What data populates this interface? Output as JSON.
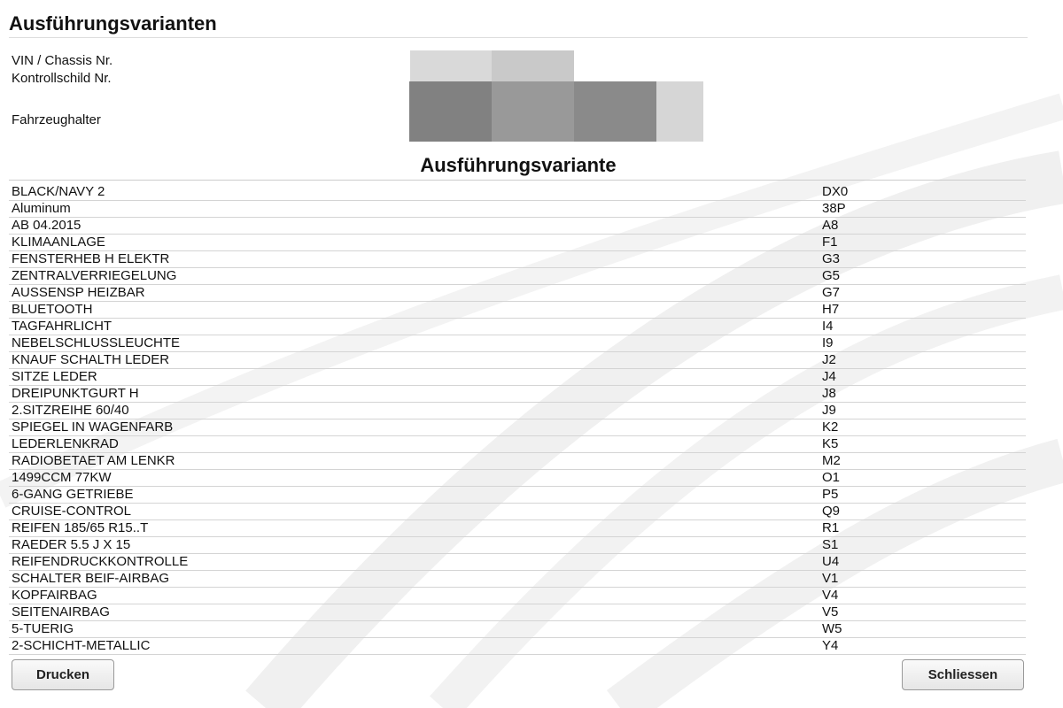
{
  "header": {
    "title": "Ausführungsvarianten"
  },
  "vehicle": {
    "labels": [
      "VIN / Chassis Nr.",
      "Kontrollschild Nr.",
      "Fahrzeughalter"
    ]
  },
  "table": {
    "title": "Ausführungsvariante",
    "rows": [
      [
        "BLACK/NAVY 2",
        "DX0"
      ],
      [
        "Aluminum",
        "38P"
      ],
      [
        "AB 04.2015",
        "A8"
      ],
      [
        "KLIMAANLAGE",
        "F1"
      ],
      [
        "FENSTERHEB H ELEKTR",
        "G3"
      ],
      [
        "ZENTRALVERRIEGELUNG",
        "G5"
      ],
      [
        "AUSSENSP HEIZBAR",
        "G7"
      ],
      [
        "BLUETOOTH",
        "H7"
      ],
      [
        "TAGFAHRLICHT",
        "I4"
      ],
      [
        "NEBELSCHLUSSLEUCHTE",
        "I9"
      ],
      [
        "KNAUF SCHALTH LEDER",
        "J2"
      ],
      [
        "SITZE LEDER",
        "J4"
      ],
      [
        "DREIPUNKTGURT H",
        "J8"
      ],
      [
        "2.SITZREIHE 60/40",
        "J9"
      ],
      [
        "SPIEGEL IN WAGENFARB",
        "K2"
      ],
      [
        "LEDERLENKRAD",
        "K5"
      ],
      [
        "RADIOBETAET AM LENKR",
        "M2"
      ],
      [
        "1499CCM 77KW",
        "O1"
      ],
      [
        "6-GANG GETRIEBE",
        "P5"
      ],
      [
        "CRUISE-CONTROL",
        "Q9"
      ],
      [
        "REIFEN 185/65 R15..T",
        "R1"
      ],
      [
        "RAEDER 5.5 J X 15",
        "S1"
      ],
      [
        "REIFENDRUCKKONTROLLE",
        "U4"
      ],
      [
        "SCHALTER BEIF-AIRBAG",
        "V1"
      ],
      [
        "KOPFAIRBAG",
        "V4"
      ],
      [
        "SEITENAIRBAG",
        "V5"
      ],
      [
        "5-TUERIG",
        "W5"
      ],
      [
        "2-SCHICHT-METALLIC",
        "Y4"
      ]
    ]
  },
  "buttons": {
    "print": "Drucken",
    "close": "Schliessen"
  }
}
